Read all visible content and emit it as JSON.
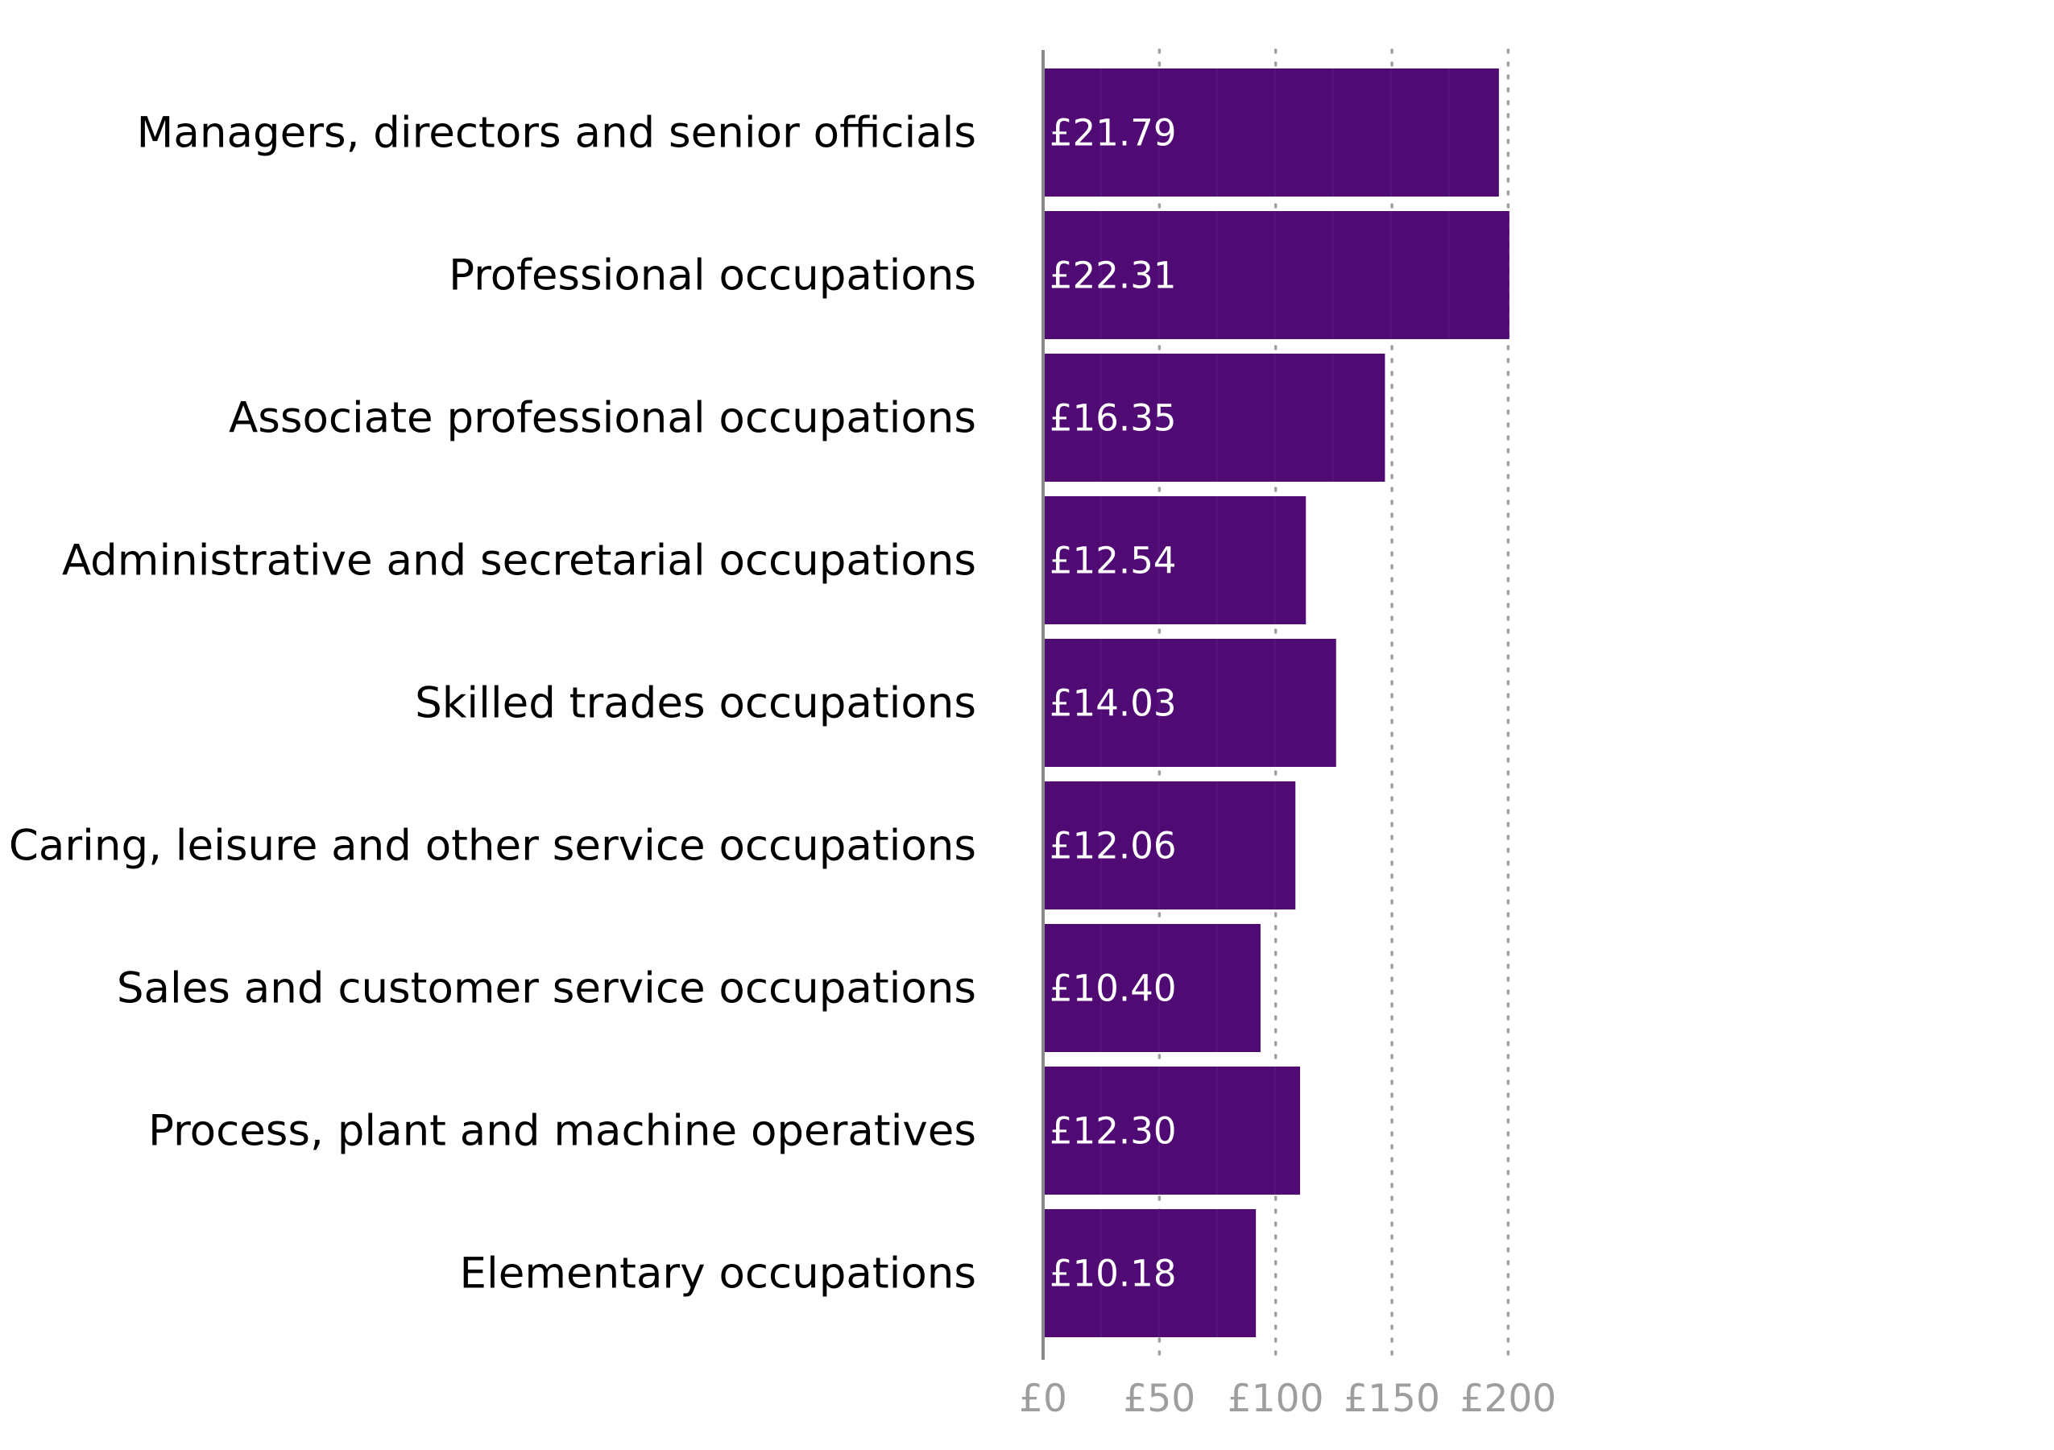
{
  "chart_data": {
    "type": "bar",
    "orientation": "horizontal",
    "categories": [
      "Managers, directors and senior officials",
      "Professional occupations",
      "Associate professional occupations",
      "Administrative and secretarial occupations",
      "Skilled trades occupations",
      "Caring, leisure and other service occupations",
      "Sales and customer service occupations",
      "Process, plant and machine operatives",
      "Elementary occupations"
    ],
    "values": [
      196,
      200.5,
      147,
      113,
      126,
      108.5,
      93.5,
      110.5,
      91.5
    ],
    "data_labels": [
      "£21.79",
      "£22.31",
      "£16.35",
      "£12.54",
      "£14.03",
      "£12.06",
      "£10.40",
      "£12.30",
      "£10.18"
    ],
    "xlim": [
      0,
      200
    ],
    "xticks": [
      0,
      50,
      100,
      150,
      200
    ],
    "xtick_labels": [
      "£0",
      "£50",
      "£100",
      "£150",
      "£200"
    ],
    "grid": "vertical dotted",
    "title": "",
    "xlabel": "",
    "ylabel": "",
    "colors": {
      "bar": "#4f0a73",
      "segment_line": "#5f1c84",
      "grid": "#a0a0a0",
      "axis": "#8a8a8a",
      "tick_text": "#9e9e9e",
      "category_text": "#000000",
      "value_text": "#ffffff"
    }
  }
}
